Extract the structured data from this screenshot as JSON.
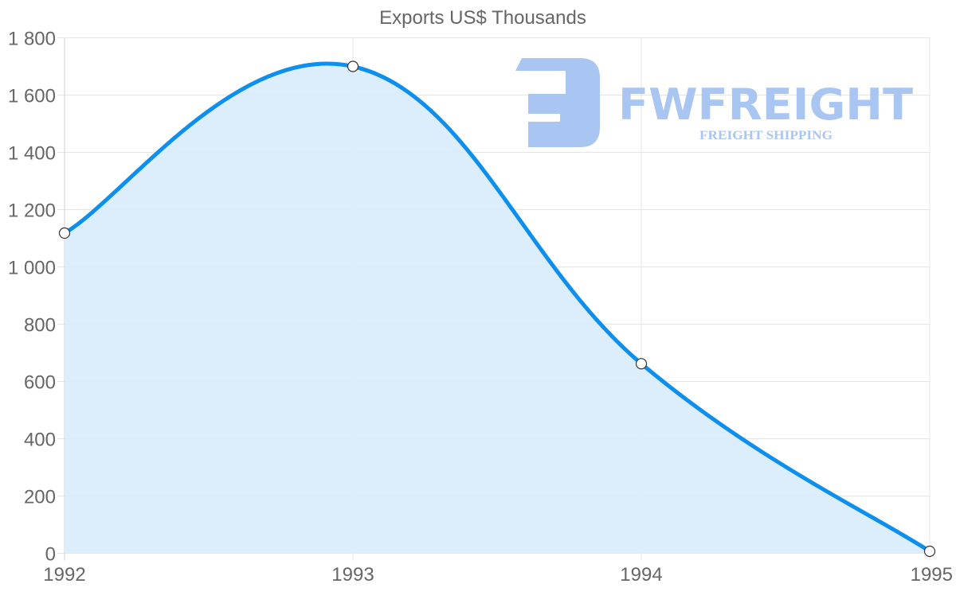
{
  "chart_data": {
    "type": "line",
    "title": "Exports US$ Thousands",
    "xlabel": "",
    "ylabel": "",
    "categories": [
      "1992",
      "1993",
      "1994",
      "1995"
    ],
    "series": [
      {
        "name": "Exports",
        "values": [
          1118,
          1700,
          662,
          7
        ],
        "line_color": "#0d8ff0",
        "fill_color": "#d8ebfc",
        "point_fill": "#ffffff",
        "point_border": "#333333"
      }
    ],
    "ylim": [
      0,
      1800
    ],
    "y_ticks": [
      0,
      200,
      400,
      600,
      800,
      1000,
      1200,
      1400,
      1600,
      1800
    ],
    "y_tick_labels": [
      "0",
      "200",
      "400",
      "600",
      "800",
      "1 000",
      "1 200",
      "1 400",
      "1 600",
      "1 800"
    ],
    "grid": true,
    "legend": "none",
    "filled": true
  },
  "watermark": {
    "brand": "FWFREIGHT",
    "tagline": "FREIGHT SHIPPING",
    "color": "#a9c5f1"
  },
  "colors": {
    "grid": "#e5e5e5",
    "axis": "#d0d0d0",
    "text": "#666666"
  }
}
